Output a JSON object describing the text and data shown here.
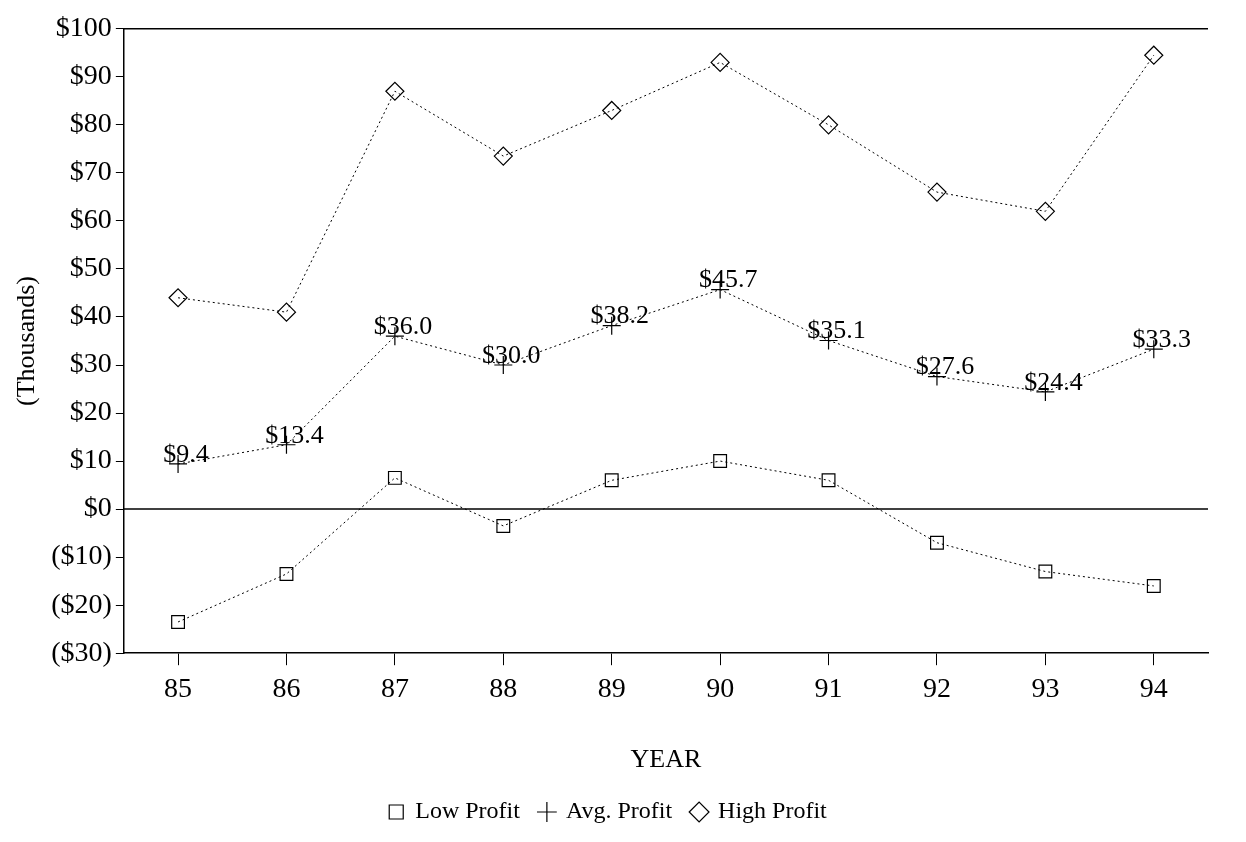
{
  "chart_data": {
    "type": "line",
    "xlabel": "YEAR",
    "ylabel": "(Thousands)",
    "categories": [
      "85",
      "86",
      "87",
      "88",
      "89",
      "90",
      "91",
      "92",
      "93",
      "94"
    ],
    "series": [
      {
        "name": "Low Profit",
        "color": "#000000",
        "marker": "square",
        "values": [
          -23.5,
          -13.5,
          6.5,
          -3.5,
          6,
          10,
          6,
          -7,
          -13,
          -16
        ]
      },
      {
        "name": "Avg. Profit",
        "color": "#000000",
        "marker": "cross",
        "values": [
          9.4,
          13.4,
          36.0,
          30.0,
          38.2,
          45.7,
          35.1,
          27.6,
          24.4,
          33.3
        ],
        "value_labels": [
          "$9.4",
          "$13.4",
          "$36.0",
          "$30.0",
          "$38.2",
          "$45.7",
          "$35.1",
          "$27.6",
          "$24.4",
          "$33.3"
        ]
      },
      {
        "name": "High Profit",
        "color": "#000000",
        "marker": "diamond",
        "values": [
          44,
          41,
          87,
          73.5,
          83,
          93,
          80,
          66,
          62,
          94.5
        ]
      }
    ],
    "ylim": [
      -30,
      100
    ],
    "yticks": [
      {
        "value": -30,
        "label": "($30)"
      },
      {
        "value": -20,
        "label": "($20)"
      },
      {
        "value": -10,
        "label": "($10)"
      },
      {
        "value": 0,
        "label": "$0"
      },
      {
        "value": 10,
        "label": "$10"
      },
      {
        "value": 20,
        "label": "$20"
      },
      {
        "value": 30,
        "label": "$30"
      },
      {
        "value": 40,
        "label": "$40"
      },
      {
        "value": 50,
        "label": "$50"
      },
      {
        "value": 60,
        "label": "$60"
      },
      {
        "value": 70,
        "label": "$70"
      },
      {
        "value": 80,
        "label": "$80"
      },
      {
        "value": 90,
        "label": "$90"
      },
      {
        "value": 100,
        "label": "$100"
      }
    ],
    "ref_lines": [
      {
        "axis": "y",
        "value": 0,
        "color": "#000000",
        "line_style": "solid"
      }
    ],
    "line_style": "dotted",
    "legend": "bottom",
    "grid": false
  }
}
